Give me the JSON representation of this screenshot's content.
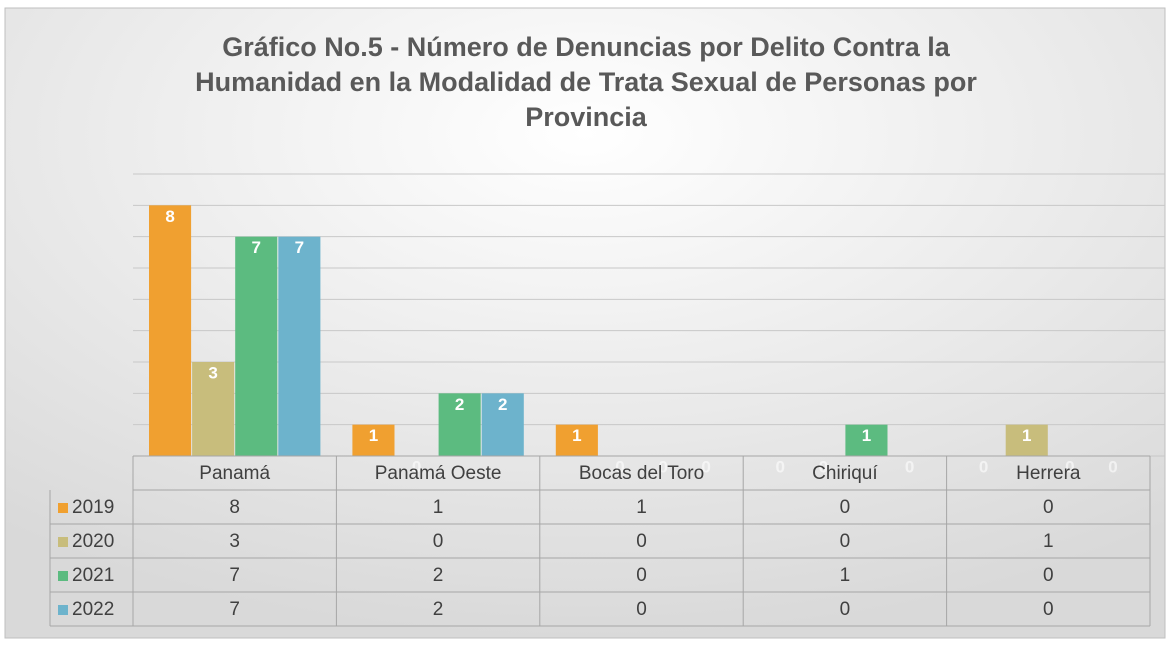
{
  "chart_data": {
    "type": "bar",
    "title": "Gráfico No.5 - Número de Denuncias por Delito Contra la Humanidad en la Modalidad de Trata Sexual de Personas por Provincia",
    "categories": [
      "Panamá",
      "Panamá Oeste",
      "Bocas del Toro",
      "Chiriquí",
      "Herrera"
    ],
    "series": [
      {
        "name": "2019",
        "color": "#f0a030",
        "values": [
          8,
          1,
          1,
          0,
          0
        ]
      },
      {
        "name": "2020",
        "color": "#c8bd7c",
        "values": [
          3,
          0,
          0,
          0,
          1
        ]
      },
      {
        "name": "2021",
        "color": "#5cbb80",
        "values": [
          7,
          2,
          0,
          1,
          0
        ]
      },
      {
        "name": "2022",
        "color": "#6db3cc",
        "values": [
          7,
          2,
          0,
          0,
          0
        ]
      }
    ],
    "ylim": [
      0,
      9
    ],
    "yticks": [
      0,
      1,
      2,
      3,
      4,
      5,
      6,
      7,
      8,
      9
    ],
    "grid": true
  }
}
